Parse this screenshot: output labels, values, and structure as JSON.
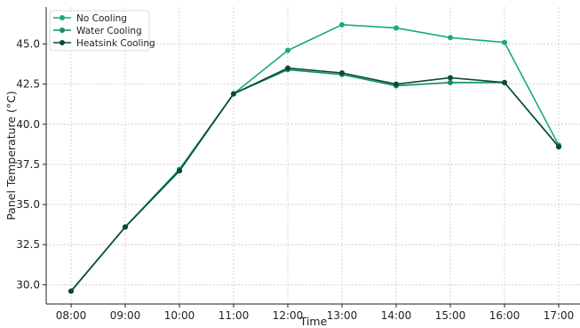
{
  "chart_data": {
    "type": "line",
    "title": "",
    "xlabel": "Time",
    "ylabel": "Panel Temperature (°C)",
    "categories": [
      "08:00",
      "09:00",
      "10:00",
      "11:00",
      "12:00",
      "13:00",
      "14:00",
      "15:00",
      "16:00",
      "17:00"
    ],
    "yticks": [
      "30.0",
      "32.5",
      "35.0",
      "37.5",
      "40.0",
      "42.5",
      "45.0"
    ],
    "ylim": [
      28.8,
      47.3
    ],
    "grid": true,
    "legend_position": "top-left",
    "series": [
      {
        "name": "No Cooling",
        "color": "#17a984",
        "values": [
          29.6,
          33.6,
          37.2,
          41.9,
          44.6,
          46.2,
          46.0,
          45.4,
          45.1,
          38.7
        ]
      },
      {
        "name": "Water Cooling",
        "color": "#138c6b",
        "values": [
          29.6,
          33.6,
          37.1,
          41.9,
          43.4,
          43.1,
          42.4,
          42.6,
          42.6,
          38.6
        ]
      },
      {
        "name": "Heatsink Cooling",
        "color": "#0b4a35",
        "values": [
          29.6,
          33.6,
          37.1,
          41.9,
          43.5,
          43.2,
          42.5,
          42.9,
          42.6,
          38.6
        ]
      }
    ]
  }
}
